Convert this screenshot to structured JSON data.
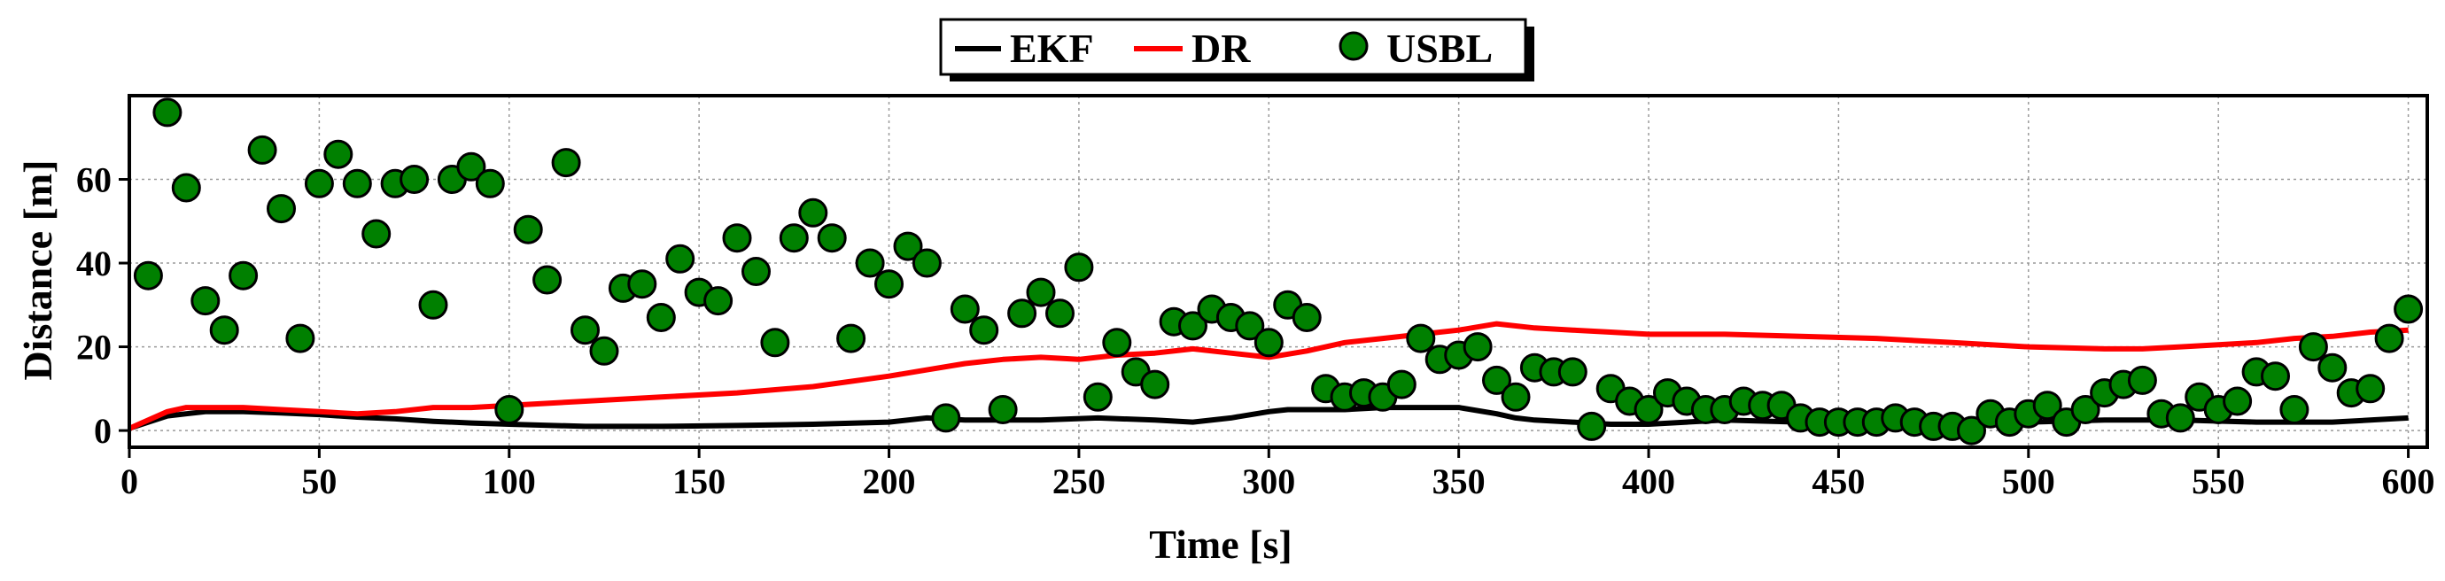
{
  "chart_data": {
    "type": "line",
    "title": "",
    "xlabel": "Time [s]",
    "ylabel": "Distance [m]",
    "xlim": [
      0,
      605
    ],
    "ylim": [
      -4,
      80
    ],
    "xticks": [
      0,
      50,
      100,
      150,
      200,
      250,
      300,
      350,
      400,
      450,
      500,
      550,
      600
    ],
    "yticks": [
      0,
      20,
      40,
      60
    ],
    "grid": true,
    "legend_position": "top-center",
    "series": [
      {
        "name": "EKF",
        "kind": "line",
        "color": "#000000",
        "x": [
          0,
          5,
          10,
          15,
          20,
          30,
          40,
          50,
          60,
          70,
          80,
          90,
          100,
          120,
          140,
          160,
          180,
          200,
          210,
          220,
          240,
          255,
          270,
          280,
          290,
          300,
          305,
          310,
          320,
          330,
          340,
          350,
          360,
          365,
          370,
          380,
          390,
          400,
          410,
          420,
          440,
          460,
          480,
          490,
          500,
          520,
          540,
          560,
          580,
          590,
          600
        ],
        "y": [
          0.5,
          2,
          3.5,
          4,
          4.5,
          4.5,
          4.2,
          3.8,
          3.2,
          2.8,
          2.2,
          1.8,
          1.5,
          1,
          1,
          1.2,
          1.5,
          2,
          3,
          2.5,
          2.5,
          3,
          2.5,
          2,
          3,
          4.5,
          5,
          5,
          5,
          5.5,
          5.5,
          5.5,
          4,
          3,
          2.5,
          2,
          1.5,
          1.5,
          2,
          2.5,
          2,
          2,
          1.5,
          1.5,
          2,
          2.5,
          2.5,
          2,
          2,
          2.5,
          3
        ]
      },
      {
        "name": "DR",
        "kind": "line",
        "color": "#ff0000",
        "x": [
          0,
          5,
          10,
          15,
          20,
          30,
          40,
          50,
          60,
          70,
          80,
          90,
          100,
          120,
          140,
          160,
          180,
          200,
          210,
          220,
          230,
          240,
          250,
          260,
          270,
          280,
          290,
          300,
          310,
          320,
          330,
          340,
          350,
          360,
          370,
          380,
          390,
          400,
          420,
          440,
          460,
          480,
          500,
          520,
          530,
          540,
          550,
          560,
          570,
          580,
          590,
          600
        ],
        "y": [
          0.5,
          2.5,
          4.5,
          5.5,
          5.5,
          5.5,
          5,
          4.5,
          4,
          4.5,
          5.5,
          5.5,
          6,
          7,
          8,
          9,
          10.5,
          13,
          14.5,
          16,
          17,
          17.5,
          17,
          18,
          18.5,
          19.5,
          18.5,
          17.5,
          19,
          21,
          22,
          23,
          24,
          25.5,
          24.5,
          24,
          23.5,
          23,
          23,
          22.5,
          22,
          21,
          20,
          19.5,
          19.5,
          20,
          20.5,
          21,
          22,
          22.5,
          23.5,
          24
        ]
      },
      {
        "name": "USBL",
        "kind": "scatter",
        "color": "#008000",
        "x": [
          5,
          10,
          15,
          20,
          25,
          30,
          35,
          40,
          45,
          50,
          55,
          60,
          65,
          70,
          75,
          80,
          85,
          90,
          95,
          100,
          105,
          110,
          115,
          120,
          125,
          130,
          135,
          140,
          145,
          150,
          155,
          160,
          165,
          170,
          175,
          180,
          185,
          190,
          195,
          200,
          205,
          210,
          215,
          220,
          225,
          230,
          235,
          240,
          245,
          250,
          255,
          260,
          265,
          270,
          275,
          280,
          285,
          290,
          295,
          300,
          305,
          310,
          315,
          320,
          325,
          330,
          335,
          340,
          345,
          350,
          355,
          360,
          365,
          370,
          375,
          380,
          385,
          390,
          395,
          400,
          405,
          410,
          415,
          420,
          425,
          430,
          435,
          440,
          445,
          450,
          455,
          460,
          465,
          470,
          475,
          480,
          485,
          490,
          495,
          500,
          505,
          510,
          515,
          520,
          525,
          530,
          535,
          540,
          545,
          550,
          555,
          560,
          565,
          570,
          575,
          580,
          585,
          590,
          595,
          600
        ],
        "y": [
          37,
          76,
          58,
          31,
          24,
          37,
          67,
          53,
          22,
          59,
          66,
          59,
          47,
          59,
          60,
          30,
          60,
          63,
          59,
          5,
          48,
          36,
          64,
          24,
          19,
          34,
          35,
          27,
          41,
          33,
          31,
          46,
          38,
          21,
          46,
          52,
          46,
          22,
          40,
          35,
          44,
          40,
          3,
          29,
          24,
          5,
          28,
          33,
          28,
          39,
          8,
          21,
          14,
          11,
          26,
          25,
          29,
          27,
          25,
          21,
          30,
          27,
          10,
          8,
          9,
          8,
          11,
          22,
          17,
          18,
          20,
          12,
          8,
          15,
          14,
          14,
          1,
          10,
          7,
          5,
          9,
          7,
          5,
          5,
          7,
          6,
          6,
          3,
          2,
          2,
          2,
          2,
          3,
          2,
          1,
          1,
          0,
          4,
          2,
          4,
          6,
          2,
          5,
          9,
          11,
          12,
          4,
          3,
          8,
          5,
          7,
          14,
          13,
          5,
          20,
          15,
          9,
          10,
          22,
          29
        ]
      }
    ]
  }
}
